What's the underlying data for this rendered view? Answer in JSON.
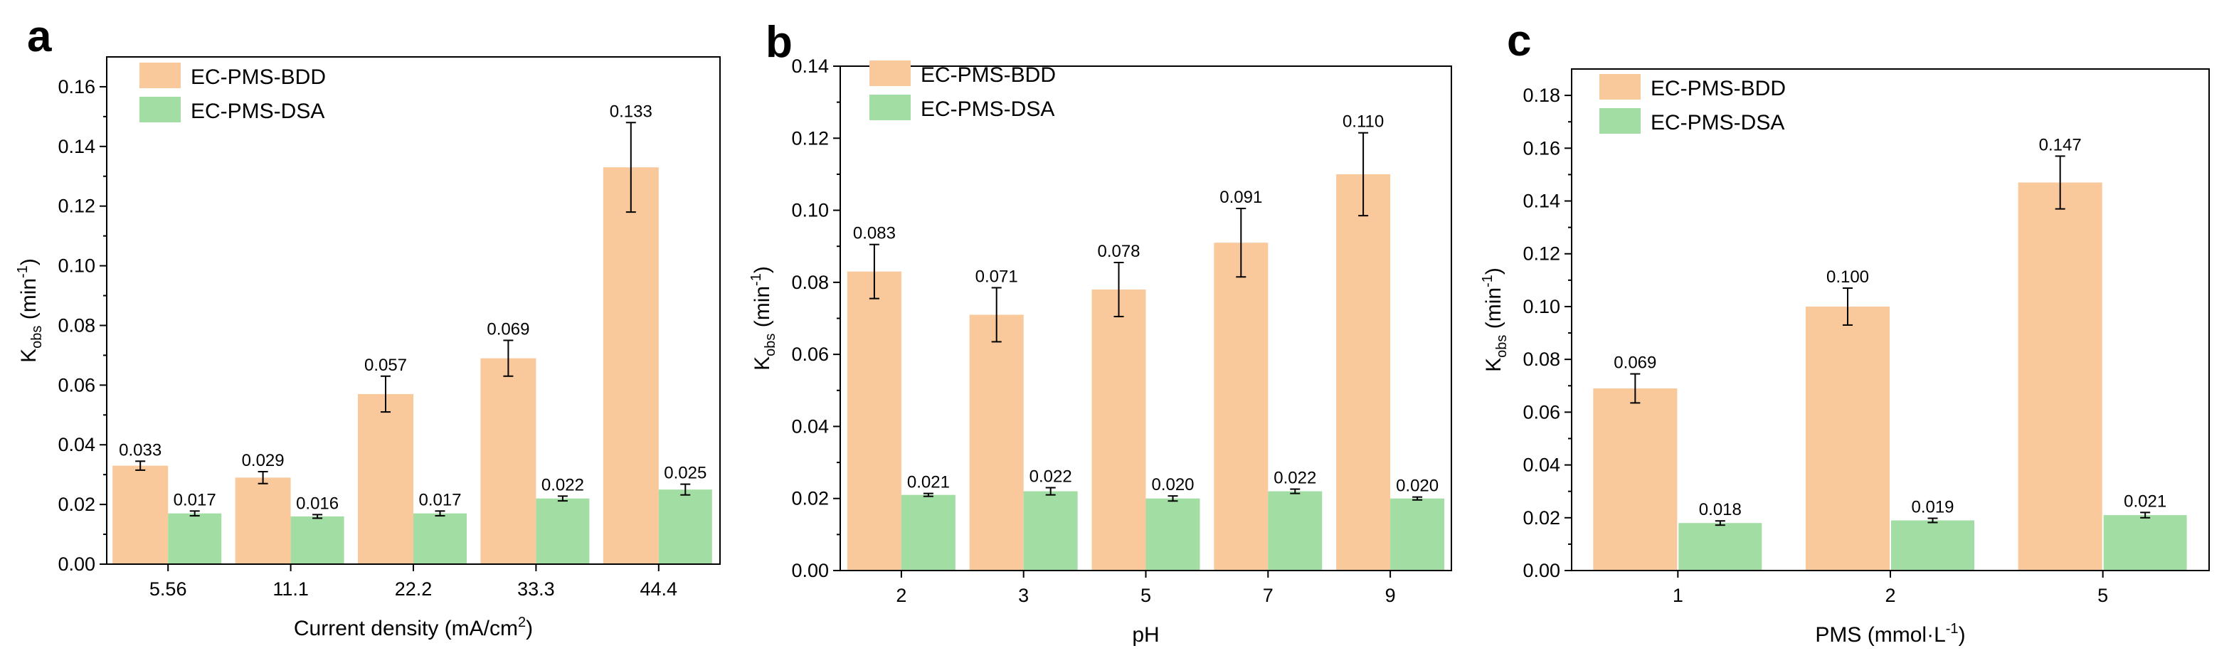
{
  "palette": {
    "bdd": "#f9c89b",
    "dsa": "#a2dea4",
    "axis": "#000000"
  },
  "chart_data": [
    {
      "panel": "a",
      "type": "bar",
      "xlabel_main": "Current density (mA/cm",
      "xlabel_sup": "2",
      "xlabel_end": ")",
      "ylabel_main": "K",
      "ylabel_sub": "obs",
      "ylabel_unit": " (min",
      "ylabel_sup": "-1",
      "ylabel_end": ")",
      "ylim": [
        0,
        0.17
      ],
      "yticks": [
        "0.00",
        "0.02",
        "0.04",
        "0.06",
        "0.08",
        "0.10",
        "0.12",
        "0.14",
        "0.16"
      ],
      "categories": [
        "5.56",
        "11.1",
        "22.2",
        "33.3",
        "44.4"
      ],
      "legend_position": "top-left",
      "series": [
        {
          "name": "EC-PMS-BDD",
          "color_key": "bdd",
          "values": [
            0.033,
            0.029,
            0.057,
            0.069,
            0.133
          ],
          "errors": [
            0.0015,
            0.002,
            0.006,
            0.006,
            0.015
          ],
          "labels": [
            "0.033",
            "0.029",
            "0.057",
            "0.069",
            "0.133"
          ]
        },
        {
          "name": "EC-PMS-DSA",
          "color_key": "dsa",
          "values": [
            0.017,
            0.016,
            0.017,
            0.022,
            0.025
          ],
          "errors": [
            0.0008,
            0.0006,
            0.0008,
            0.0008,
            0.0018
          ],
          "labels": [
            "0.017",
            "0.016",
            "0.017",
            "0.022",
            "0.025"
          ]
        }
      ]
    },
    {
      "panel": "b",
      "type": "bar",
      "xlabel_main": "pH",
      "xlabel_sup": "",
      "xlabel_end": "",
      "ylabel_main": "K",
      "ylabel_sub": "obs",
      "ylabel_unit": " (min",
      "ylabel_sup": "-1",
      "ylabel_end": ")",
      "ylim": [
        0,
        0.14
      ],
      "yticks": [
        "0.00",
        "0.02",
        "0.04",
        "0.06",
        "0.08",
        "0.10",
        "0.12",
        "0.14"
      ],
      "categories": [
        "2",
        "3",
        "5",
        "7",
        "9"
      ],
      "legend_position": "top-left",
      "series": [
        {
          "name": "EC-PMS-BDD",
          "color_key": "bdd",
          "values": [
            0.083,
            0.071,
            0.078,
            0.091,
            0.11
          ],
          "errors": [
            0.0075,
            0.0075,
            0.0075,
            0.0095,
            0.0115
          ],
          "labels": [
            "0.083",
            "0.071",
            "0.078",
            "0.091",
            "0.110"
          ]
        },
        {
          "name": "EC-PMS-DSA",
          "color_key": "dsa",
          "values": [
            0.021,
            0.022,
            0.02,
            0.022,
            0.02
          ],
          "errors": [
            0.0004,
            0.001,
            0.0007,
            0.0006,
            0.0004
          ],
          "labels": [
            "0.021",
            "0.022",
            "0.020",
            "0.022",
            "0.020"
          ]
        }
      ]
    },
    {
      "panel": "c",
      "type": "bar",
      "xlabel_main": "PMS (mmol·L",
      "xlabel_sup": "-1",
      "xlabel_end": ")",
      "ylabel_main": "K",
      "ylabel_sub": "obs",
      "ylabel_unit": " (min",
      "ylabel_sup": "-1",
      "ylabel_end": ")",
      "ylim": [
        0,
        0.19
      ],
      "yticks": [
        "0.00",
        "0.02",
        "0.04",
        "0.06",
        "0.08",
        "0.10",
        "0.12",
        "0.14",
        "0.16",
        "0.18"
      ],
      "categories": [
        "1",
        "2",
        "5"
      ],
      "legend_position": "top-left",
      "series": [
        {
          "name": "EC-PMS-BDD",
          "color_key": "bdd",
          "values": [
            0.069,
            0.1,
            0.147
          ],
          "errors": [
            0.0055,
            0.007,
            0.01
          ],
          "labels": [
            "0.069",
            "0.100",
            "0.147"
          ]
        },
        {
          "name": "EC-PMS-DSA",
          "color_key": "dsa",
          "values": [
            0.018,
            0.019,
            0.021
          ],
          "errors": [
            0.0008,
            0.0008,
            0.001
          ],
          "labels": [
            "0.018",
            "0.019",
            "0.021"
          ]
        }
      ]
    }
  ]
}
